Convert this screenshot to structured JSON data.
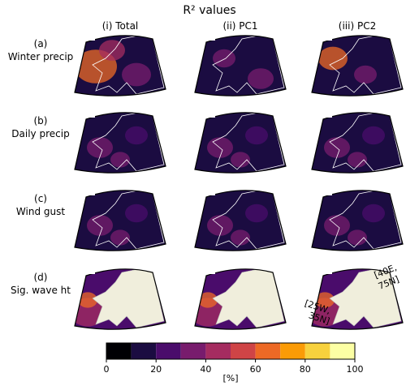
{
  "title": "R² values",
  "columns": [
    "(i) Total",
    "(ii) PC1",
    "(iii) PC2"
  ],
  "rows": [
    {
      "label": "(a)",
      "name": "Winter precip"
    },
    {
      "label": "(b)",
      "name": "Daily precip"
    },
    {
      "label": "(c)",
      "name": "Wind gust"
    },
    {
      "label": "(d)",
      "name": "Sig. wave ht"
    }
  ],
  "corner_labels": {
    "top_right": [
      "[40E,",
      "75N]"
    ],
    "bottom_left": [
      "[25W,",
      "35N]"
    ]
  },
  "colorbar": {
    "label": "[%]",
    "lim": [
      0,
      100
    ],
    "ticks": [
      0,
      20,
      40,
      60,
      80,
      100
    ],
    "bounds": [
      0,
      10,
      20,
      30,
      40,
      50,
      60,
      70,
      80,
      90,
      100
    ],
    "colors": [
      "#000004",
      "#1b0c41",
      "#4a0c6b",
      "#781c6d",
      "#a52c60",
      "#cf4446",
      "#ed6925",
      "#fb9b06",
      "#f7d13d",
      "#fcffa4"
    ]
  }
}
